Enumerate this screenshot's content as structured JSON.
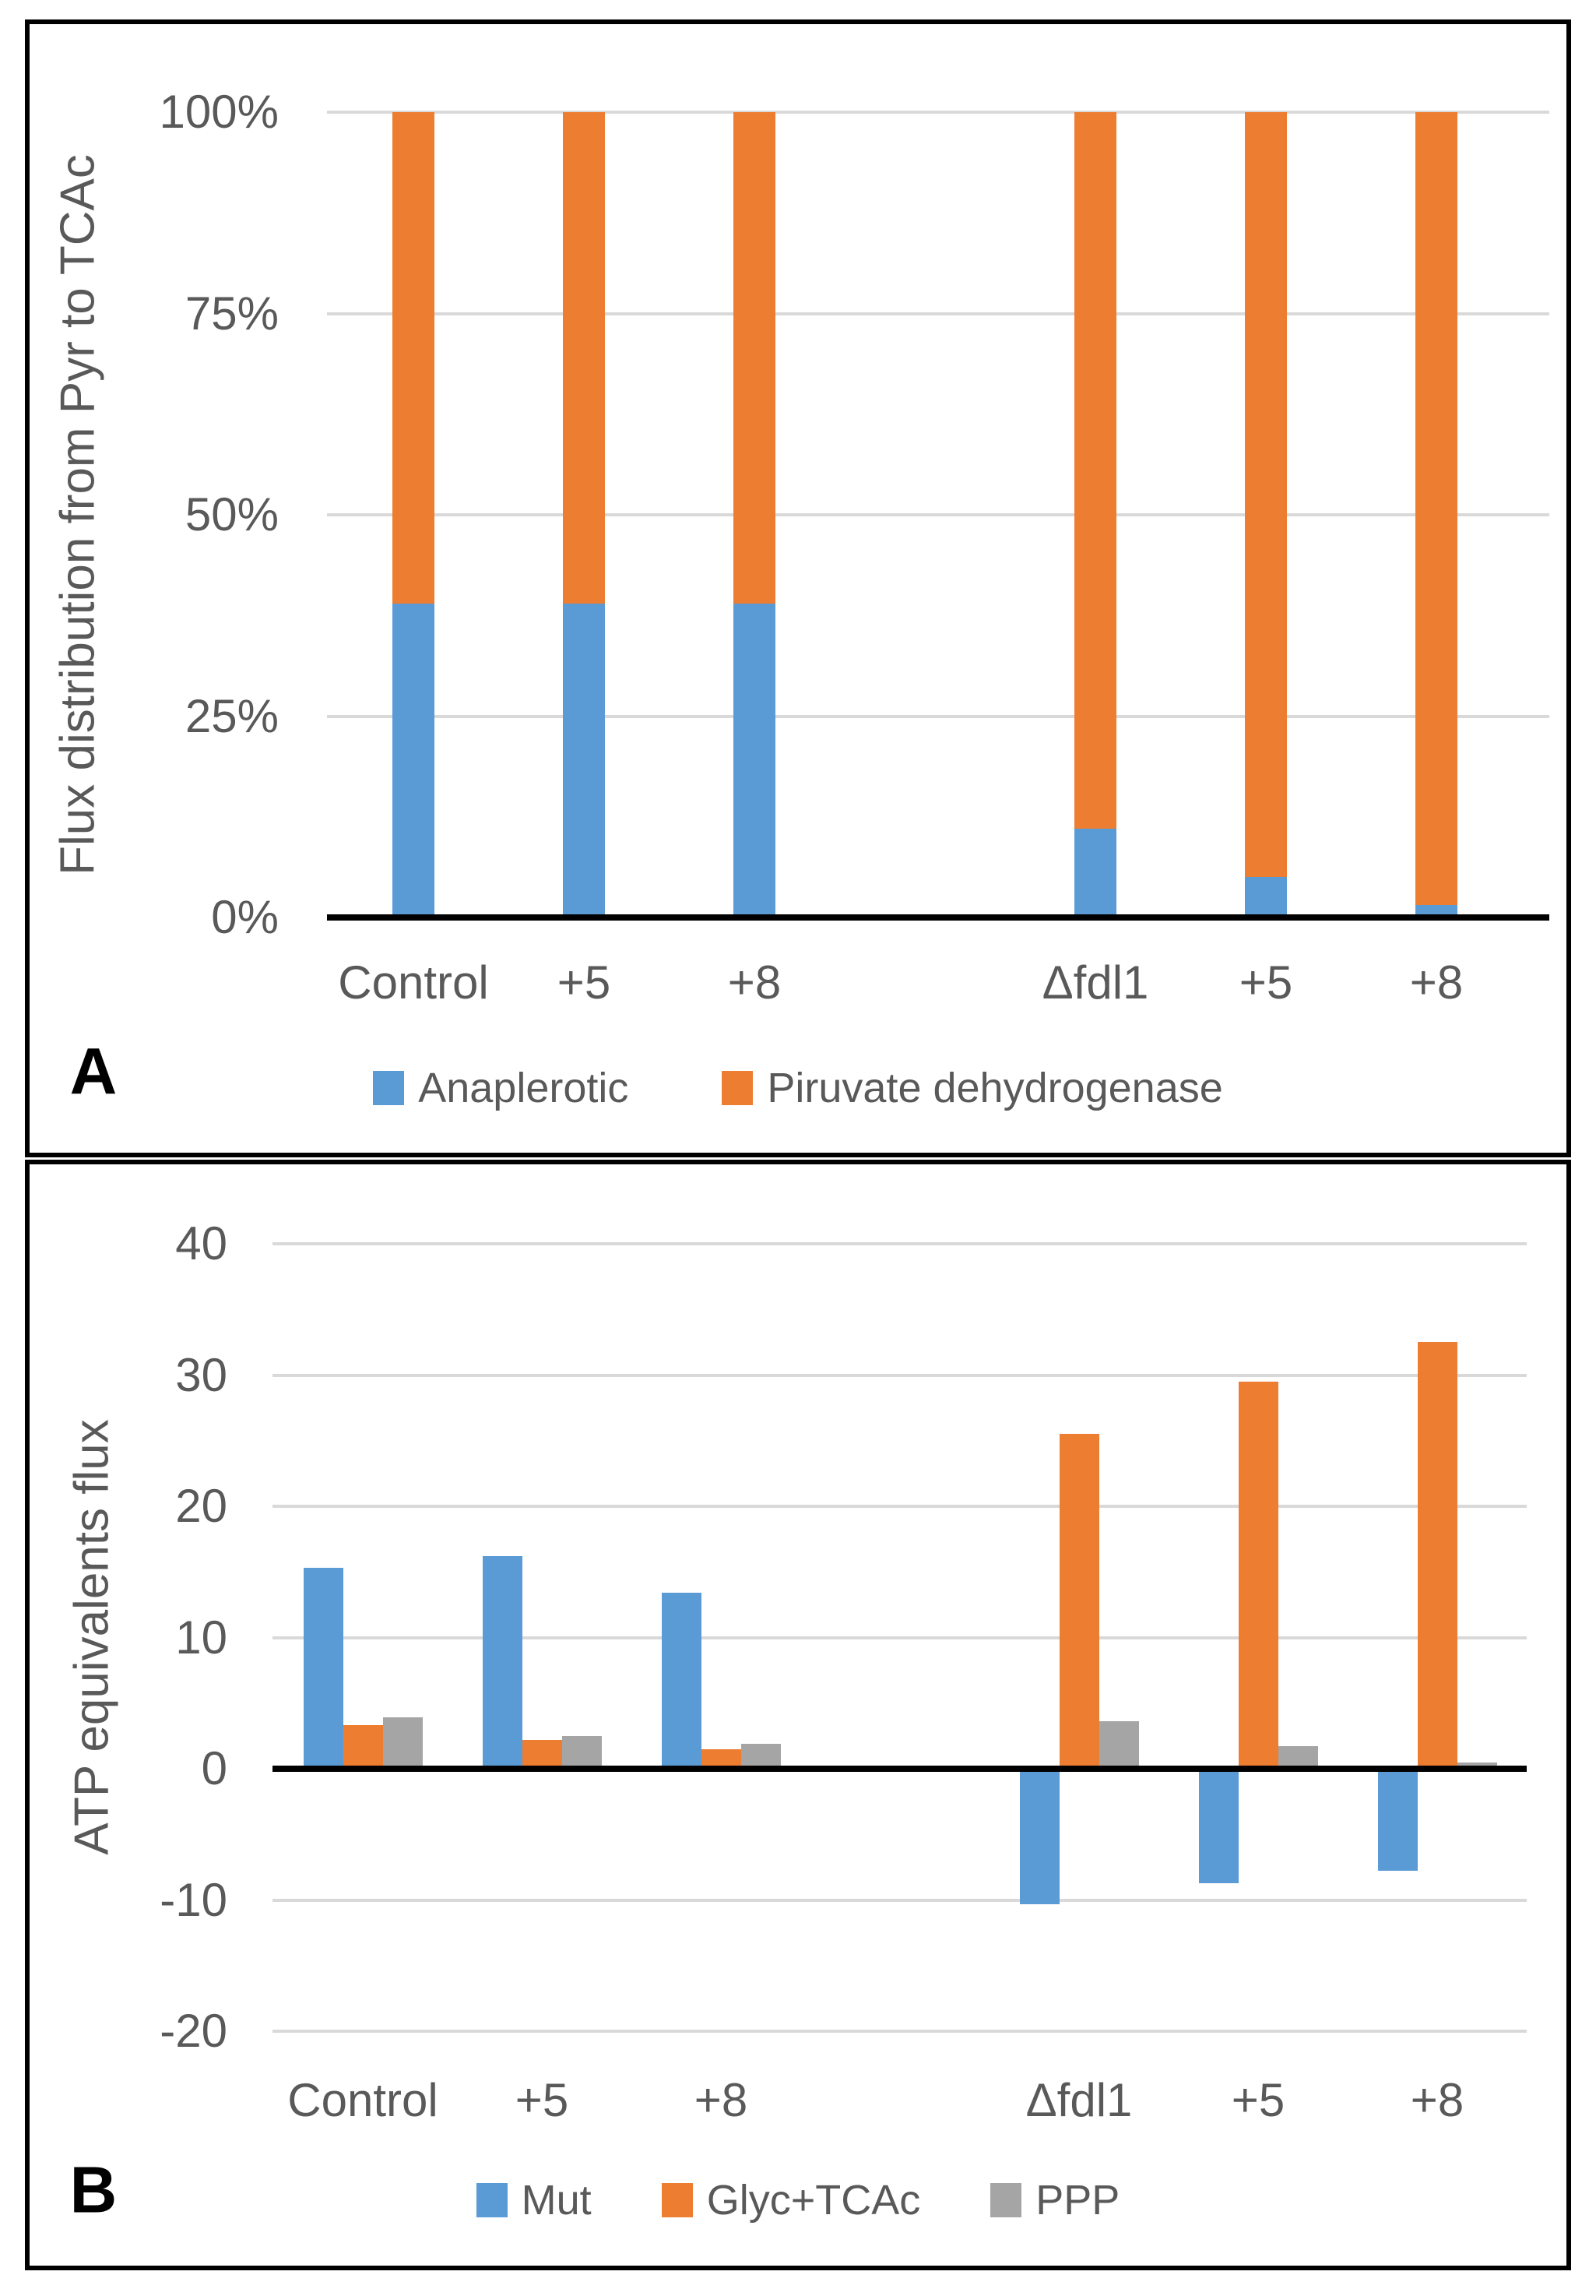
{
  "figure": {
    "background": "#ffffff",
    "border_color": "#000000",
    "grid_color": "#d9d9d9",
    "text_color": "#595959"
  },
  "panels": {
    "a": {
      "letter": "A"
    },
    "b": {
      "letter": "B"
    }
  },
  "chart_data": [
    {
      "type": "bar",
      "subtype": "stacked-100",
      "panel": "A",
      "title": "",
      "xlabel": "",
      "ylabel": "Flux distribution from Pyr to TCAc",
      "categories": [
        "Control",
        "+5",
        "+8",
        "Δfdl1",
        "+5",
        "+8"
      ],
      "series": [
        {
          "name": "Anaplerotic",
          "color": "#5b9bd5",
          "values": [
            39,
            39,
            39,
            11,
            5,
            1.5
          ]
        },
        {
          "name": "Piruvate dehydrogenase",
          "color": "#ed7d31",
          "values": [
            61,
            61,
            61,
            89,
            95,
            98.5
          ]
        }
      ],
      "ylim": [
        0,
        100
      ],
      "y_ticks": [
        100,
        75,
        50,
        25,
        0
      ],
      "y_tick_labels": [
        "100%",
        "75%",
        "50%",
        "25%",
        "0%"
      ],
      "grid": true,
      "legend_position": "bottom"
    },
    {
      "type": "bar",
      "subtype": "grouped",
      "panel": "B",
      "title": "",
      "xlabel": "",
      "ylabel": "ATP equivalents flux",
      "categories": [
        "Control",
        "+5",
        "+8",
        "Δfdl1",
        "+5",
        "+8"
      ],
      "series": [
        {
          "name": "Mut",
          "color": "#5b9bd5",
          "values": [
            15.3,
            16.2,
            13.4,
            -10.3,
            -8.7,
            -7.8
          ]
        },
        {
          "name": "Glyc+TCAc",
          "color": "#ed7d31",
          "values": [
            3.3,
            2.2,
            1.5,
            25.5,
            29.5,
            32.5
          ]
        },
        {
          "name": "PPP",
          "color": "#a5a5a5",
          "values": [
            3.9,
            2.5,
            1.9,
            3.6,
            1.7,
            0.5
          ]
        }
      ],
      "ylim": [
        -20,
        40
      ],
      "y_ticks": [
        40,
        30,
        20,
        10,
        0,
        -10,
        -20
      ],
      "y_tick_labels": [
        "40",
        "30",
        "20",
        "10",
        "0",
        "-10",
        "-20"
      ],
      "grid": true,
      "legend_position": "bottom"
    }
  ]
}
